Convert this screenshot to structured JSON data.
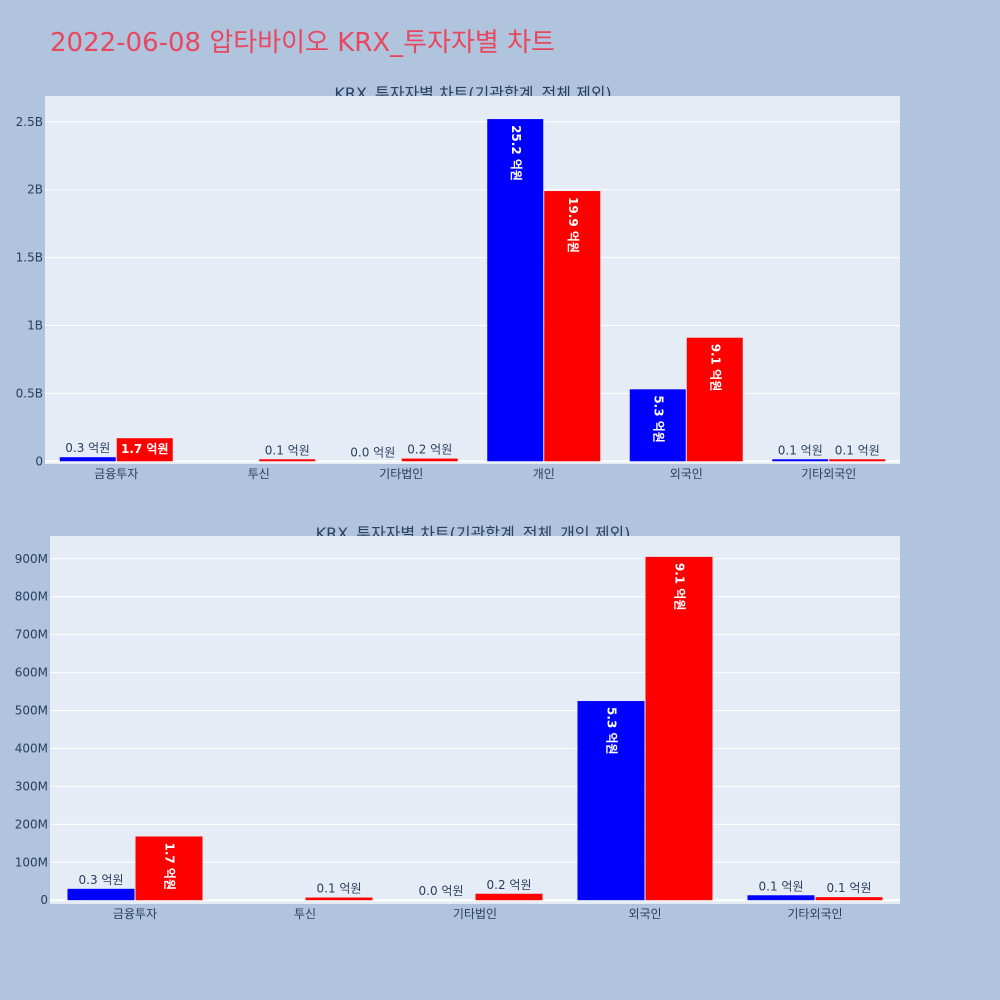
{
  "page_title": "2022-06-08 압타바이오 KRX_투자자별 차트",
  "colors": {
    "page_bg": "#b0c4de",
    "plot_bg": "#e5ecf6",
    "grid": "#ffffff",
    "axis_text": "#2a3f5f",
    "title": "#e8485f",
    "series": [
      "#0000ff",
      "#ff0000"
    ]
  },
  "chart_data": [
    {
      "type": "bar",
      "title": "KRX_투자자별 차트(기관합계_전체 제외)",
      "categories": [
        "금융투자",
        "투신",
        "기타법인",
        "개인",
        "외국인",
        "기타외국인"
      ],
      "series": [
        {
          "values": [
            30000000,
            0,
            0,
            2520000000,
            530000000,
            10000000
          ],
          "labels": [
            "0.3 억원",
            "",
            "0.0 억원",
            "25.2 억원",
            "5.3 억원",
            "0.1 억원"
          ]
        },
        {
          "values": [
            170000000,
            10000000,
            20000000,
            1990000000,
            910000000,
            10000000
          ],
          "labels": [
            "1.7 억원",
            "0.1 억원",
            "0.2 억원",
            "19.9 억원",
            "9.1 억원",
            "0.1 억원"
          ]
        }
      ],
      "ylim": [
        -20000000,
        2690000000
      ],
      "y_ticks": [
        0,
        500000000,
        1000000000,
        1500000000,
        2000000000,
        2500000000
      ],
      "y_tick_labels": [
        "0",
        "0.5B",
        "1B",
        "1.5B",
        "2B",
        "2.5B"
      ],
      "grid": true
    },
    {
      "type": "bar",
      "title": "KRX_투자자별 차트(기관합계_전체_개인 제외)",
      "categories": [
        "금융투자",
        "투신",
        "기타법인",
        "외국인",
        "기타외국인"
      ],
      "series": [
        {
          "values": [
            30000000,
            0,
            0,
            525000000,
            13000000
          ],
          "labels": [
            "0.3 억원",
            "",
            "0.0 억원",
            "5.3 억원",
            "0.1 억원"
          ]
        },
        {
          "values": [
            168000000,
            7000000,
            17000000,
            905000000,
            8000000
          ],
          "labels": [
            "1.7 억원",
            "0.1 억원",
            "0.2 억원",
            "9.1 억원",
            "0.1 억원"
          ]
        }
      ],
      "ylim": [
        -10000000,
        960000000
      ],
      "y_ticks": [
        0,
        100000000,
        200000000,
        300000000,
        400000000,
        500000000,
        600000000,
        700000000,
        800000000,
        900000000
      ],
      "y_tick_labels": [
        "0",
        "100M",
        "200M",
        "300M",
        "400M",
        "500M",
        "600M",
        "700M",
        "800M",
        "900M"
      ],
      "grid": true
    }
  ]
}
